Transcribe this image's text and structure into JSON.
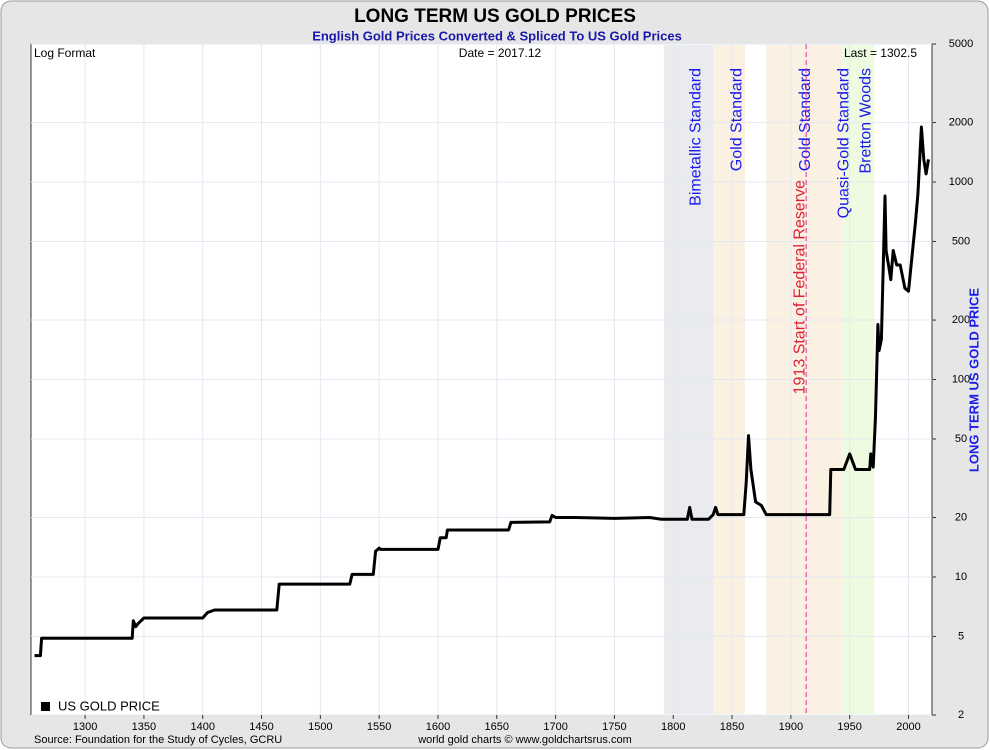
{
  "chart_data": {
    "type": "line",
    "title": "LONG TERM US GOLD PRICES",
    "subtitle": "English Gold Prices Converted & Spliced To US Gold Prices",
    "corner_notes": [
      "Log Format",
      "Date = 2017.12",
      "Last = 1302.5"
    ],
    "y_axis_label": "LONG TERM US GOLD PRICE",
    "source": "Source: Foundation for the Study of Cycles, GCRU",
    "credit": "world gold charts © www.goldchartsrus.com",
    "log_scale": true,
    "grid": true,
    "legend": "bottom-left",
    "xlim": [
      1254,
      2020
    ],
    "xticks": [
      1300,
      1350,
      1400,
      1450,
      1500,
      1550,
      1600,
      1650,
      1700,
      1750,
      1800,
      1850,
      1900,
      1950,
      2000
    ],
    "ylim": [
      2,
      5000
    ],
    "yticks": [
      2,
      5,
      10,
      20,
      50,
      100,
      200,
      500,
      1000,
      2000,
      5000
    ],
    "regions": [
      {
        "label": "Bimetallic Standard",
        "start": 1792,
        "end": 1834,
        "color": "#e9ebef"
      },
      {
        "label": "Gold Standard",
        "start": 1834,
        "end": 1861,
        "color": "#fbf1e2"
      },
      {
        "label": "Gold Standard",
        "start": 1879,
        "end": 1933,
        "color": "#fbf1e2"
      },
      {
        "label": "Quasi-Gold Standard",
        "start": 1933,
        "end": 1944,
        "color": "#fbf1e2"
      },
      {
        "label": "Bretton Woods",
        "start": 1944,
        "end": 1971,
        "color": "#eefbe0"
      }
    ],
    "event": {
      "label": "1913 Start of Federal Reserve",
      "x": 1913,
      "color": "#e0309a"
    },
    "series": [
      {
        "name": "US GOLD PRICE",
        "color": "#000000",
        "x": [
          1257,
          1262,
          1263,
          1340,
          1341,
          1343,
          1345,
          1350,
          1400,
          1404,
          1410,
          1463,
          1465,
          1525,
          1527,
          1545,
          1547,
          1550,
          1551,
          1600,
          1602,
          1607,
          1608,
          1660,
          1662,
          1695,
          1697,
          1700,
          1717,
          1750,
          1780,
          1790,
          1812,
          1814,
          1816,
          1830,
          1834,
          1836,
          1838,
          1860,
          1862,
          1864,
          1866,
          1870,
          1875,
          1879,
          1933,
          1934,
          1945,
          1950,
          1955,
          1967,
          1968,
          1970,
          1972,
          1974,
          1975,
          1977,
          1980,
          1981,
          1983,
          1985,
          1987,
          1990,
          1993,
          1997,
          2000,
          2003,
          2006,
          2008,
          2011,
          2013,
          2015,
          2017
        ],
        "values": [
          4,
          4,
          4.9,
          4.9,
          6,
          5.6,
          5.8,
          6.2,
          6.2,
          6.6,
          6.8,
          6.8,
          9.2,
          9.2,
          10.3,
          10.3,
          13.5,
          14,
          13.8,
          13.8,
          15.8,
          15.8,
          17.3,
          17.3,
          18.9,
          19,
          20.5,
          20,
          20,
          19.8,
          20,
          19.6,
          19.6,
          22.5,
          19.6,
          19.6,
          20.7,
          22.5,
          20.7,
          20.7,
          30,
          52,
          35,
          24,
          23,
          20.7,
          20.7,
          35,
          35,
          42,
          35,
          35,
          42,
          36,
          65,
          190,
          140,
          160,
          850,
          450,
          380,
          320,
          450,
          380,
          380,
          290,
          280,
          420,
          630,
          870,
          1900,
          1300,
          1100,
          1302.5
        ]
      }
    ]
  }
}
